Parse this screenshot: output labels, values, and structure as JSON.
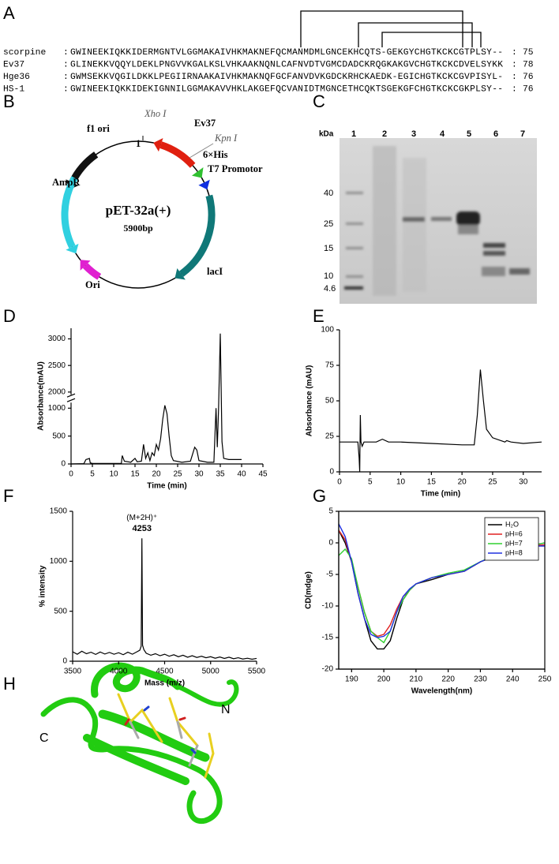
{
  "panel_labels": [
    "A",
    "B",
    "C",
    "D",
    "E",
    "F",
    "G",
    "H"
  ],
  "alignment": {
    "separator": ":",
    "rows": [
      {
        "name": "scorpine",
        "sequence": "GWINEEKIQKKIDERMGNTVLGGMAKAIVHKMAKNEFQCMANMDMLGNCEKHCQTS-GEKGYCHGTKCKCGTPLSY--",
        "length": 75
      },
      {
        "name": "Ev37",
        "sequence": "GLINEKKVQQYLDEKLPNGVVKGALKSLVHKAAKNQNLCAFNVDTVGMCDADCKRQGKAKGVCHGTKCKCDVELSYKK",
        "length": 78
      },
      {
        "name": "Hge36",
        "sequence": "GWMSEKKVQGILDKKLPEGIIRNAAKAIVHKMAKNQFGCFANVDVKGDCKRHCKAEDK-EGICHGTKCKCGVPISYL-",
        "length": 76
      },
      {
        "name": "HS-1",
        "sequence": "GWINEEKIQKKIDEKIGNNILGGMAKAVVHKLAKGEFQCVANIDTMGNCETHCQKTSGEKGFCHGTKCKCGKPLSY--",
        "length": 76
      }
    ]
  },
  "plasmid": {
    "name": "pET-32a(+)",
    "size": "5900bp",
    "labels": [
      "f1 ori",
      "Xho I",
      "1",
      "Ev37",
      "Kpn I",
      "6×His",
      "T7 Promotor",
      "AmpR",
      "lacI",
      "Ori"
    ]
  },
  "gel": {
    "unit": "kDa",
    "lanes": [
      "1",
      "2",
      "3",
      "4",
      "5",
      "6",
      "7"
    ],
    "markers": [
      40,
      25,
      15,
      10,
      4.6
    ]
  },
  "chart_data": [
    {
      "type": "line",
      "xlabel": "Time (min)",
      "ylabel": "Absorbance(mAU)",
      "color": "#000000",
      "x": [
        0,
        3,
        3.5,
        4,
        4.3,
        4.5,
        5,
        11.8,
        12,
        12.5,
        14,
        15,
        15.5,
        16.5,
        17,
        17.5,
        18,
        18.5,
        19,
        19.5,
        20,
        20.5,
        21,
        21.5,
        22,
        22.5,
        23,
        23.5,
        24,
        26,
        28,
        29,
        29.5,
        30,
        32,
        33.5,
        34,
        34.3,
        34.6,
        35,
        35.4,
        35.8,
        37,
        40
      ],
      "values": [
        0,
        5,
        80,
        90,
        100,
        20,
        10,
        10,
        150,
        50,
        30,
        100,
        40,
        50,
        350,
        100,
        200,
        60,
        200,
        150,
        350,
        250,
        450,
        800,
        1050,
        900,
        500,
        150,
        60,
        30,
        50,
        300,
        250,
        60,
        30,
        30,
        1000,
        300,
        1000,
        3100,
        400,
        100,
        80,
        80
      ],
      "xlim": [
        0,
        45
      ],
      "xticks": [
        0,
        5,
        10,
        15,
        20,
        25,
        30,
        35,
        40,
        45
      ],
      "ylim": [
        0,
        3200
      ],
      "yticks": [
        0,
        500,
        1000,
        2000,
        2500,
        3000
      ],
      "y_break": [
        1100,
        1950
      ]
    },
    {
      "type": "line",
      "xlabel": "Time (min)",
      "ylabel": "Absorbance (mAU)",
      "color": "#000000",
      "x": [
        0,
        3,
        3.2,
        3.3,
        3.4,
        3.5,
        3.7,
        4,
        6,
        7,
        8,
        10,
        15,
        20,
        22,
        22.5,
        23,
        23.5,
        24,
        25,
        27,
        27.3,
        28,
        30,
        33
      ],
      "values": [
        21,
        21,
        10,
        0,
        40,
        21,
        18,
        21,
        21,
        23,
        21,
        21,
        20,
        19,
        19,
        40,
        72,
        50,
        30,
        24,
        21,
        22,
        21,
        20,
        21
      ],
      "xlim": [
        0,
        33
      ],
      "xticks": [
        0,
        5,
        10,
        15,
        20,
        25,
        30
      ],
      "ylim": [
        0,
        100
      ],
      "yticks": [
        0,
        25,
        50,
        75,
        100
      ]
    },
    {
      "type": "line",
      "xlabel": "Mass (m/z)",
      "ylabel": "% intensity",
      "color": "#000000",
      "peak_label": "(M+2H)⁺",
      "peak_value": 4253,
      "x": [
        3500,
        3550,
        3600,
        3650,
        3700,
        3750,
        3800,
        3850,
        3900,
        3950,
        4000,
        4050,
        4100,
        4150,
        4200,
        4230,
        4245,
        4253,
        4260,
        4275,
        4300,
        4350,
        4400,
        4450,
        4500,
        4550,
        4600,
        4650,
        4700,
        4750,
        4800,
        4850,
        4900,
        4950,
        5000,
        5050,
        5100,
        5150,
        5200,
        5250,
        5300,
        5350,
        5400,
        5450,
        5500
      ],
      "values": [
        95,
        70,
        100,
        75,
        90,
        68,
        92,
        72,
        88,
        70,
        85,
        65,
        90,
        70,
        95,
        110,
        150,
        1230,
        160,
        115,
        80,
        60,
        75,
        55,
        70,
        50,
        65,
        45,
        60,
        40,
        55,
        38,
        50,
        35,
        45,
        30,
        42,
        28,
        40,
        25,
        35,
        22,
        30,
        20,
        28
      ],
      "xlim": [
        3500,
        5500
      ],
      "xticks": [
        3500,
        4000,
        4500,
        5000,
        5500
      ],
      "ylim": [
        0,
        1500
      ],
      "yticks": [
        0,
        500,
        1000,
        1500
      ]
    },
    {
      "type": "line",
      "xlabel": "Wavelength(nm)",
      "ylabel": "CD(mdge)",
      "frame": true,
      "legend": "top-right",
      "x": [
        186,
        188,
        190,
        192,
        194,
        196,
        198,
        200,
        202,
        204,
        206,
        208,
        210,
        215,
        220,
        225,
        230,
        235,
        240,
        245,
        250
      ],
      "series": [
        {
          "name": "H₂O",
          "color": "#000000",
          "values": [
            2,
            0,
            -3,
            -8,
            -12,
            -15.5,
            -16.8,
            -16.8,
            -15.5,
            -12,
            -9,
            -7.5,
            -6.5,
            -5.8,
            -5,
            -4.5,
            -3,
            -2,
            -1.2,
            -0.5,
            0
          ]
        },
        {
          "name": "pH=6",
          "color": "#e02020",
          "values": [
            2,
            0.5,
            -3,
            -7,
            -11,
            -14,
            -14.8,
            -14.5,
            -13,
            -10.5,
            -8.5,
            -7.5,
            -6.5,
            -5.5,
            -5,
            -4.5,
            -3,
            -2,
            -1,
            -0.5,
            -0.3
          ]
        },
        {
          "name": "pH=7",
          "color": "#30d030",
          "values": [
            -2,
            -1,
            -2.5,
            -7,
            -11,
            -14,
            -15,
            -15.8,
            -14,
            -11,
            -9,
            -7.5,
            -6.5,
            -5.5,
            -4.8,
            -4.3,
            -3,
            -1.8,
            -1.2,
            -0.5,
            0
          ]
        },
        {
          "name": "pH=8",
          "color": "#2030e0",
          "values": [
            3,
            1,
            -3,
            -8,
            -12,
            -14.5,
            -15,
            -14.8,
            -14,
            -11,
            -8.5,
            -7.3,
            -6.5,
            -5.5,
            -5,
            -4.5,
            -3,
            -2,
            -1.3,
            -0.5,
            -0.5
          ]
        }
      ],
      "xlim": [
        186,
        250
      ],
      "xticks": [
        190,
        200,
        210,
        220,
        230,
        240,
        250
      ],
      "ylim": [
        -20,
        5
      ],
      "yticks": [
        -20,
        -15,
        -10,
        -5,
        0,
        5
      ]
    }
  ],
  "structure": {
    "labels": [
      "C",
      "N"
    ]
  }
}
